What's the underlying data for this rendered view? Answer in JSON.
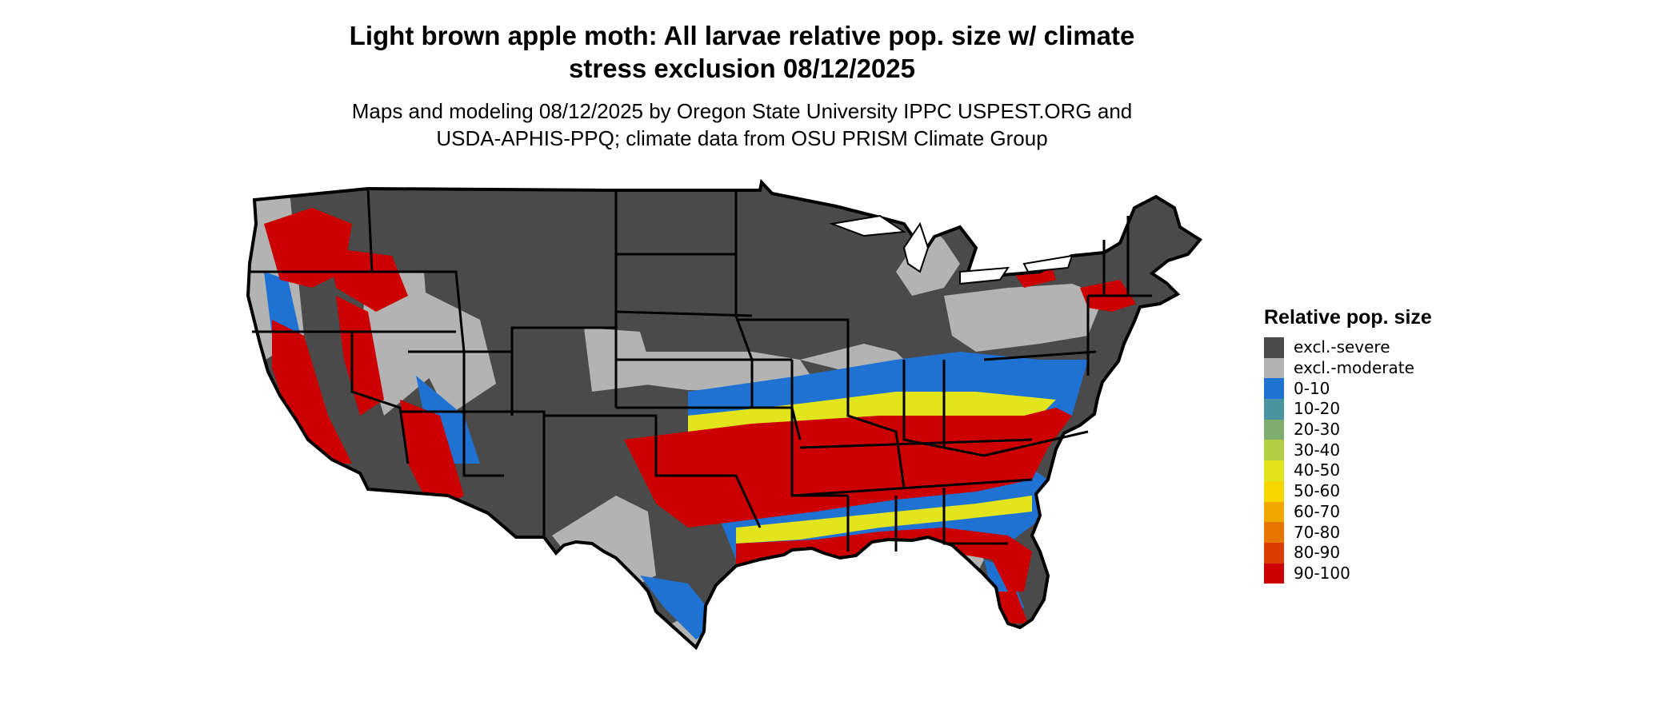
{
  "title_line1": "Light brown apple moth: All larvae relative pop. size w/ climate",
  "title_line2": "stress exclusion 08/12/2025",
  "subtitle_line1": "Maps and modeling 08/12/2025 by Oregon State University IPPC USPEST.ORG and",
  "subtitle_line2": "USDA-APHIS-PPQ; climate data from OSU PRISM Climate Group",
  "legend": {
    "title": "Relative pop. size",
    "items": [
      {
        "label": "excl.-severe",
        "color": "#4a4a4a"
      },
      {
        "label": "excl.-moderate",
        "color": "#b3b3b3"
      },
      {
        "label": "0-10",
        "color": "#1f72d1"
      },
      {
        "label": "10-20",
        "color": "#4a94a0"
      },
      {
        "label": "20-30",
        "color": "#7fad6e"
      },
      {
        "label": "30-40",
        "color": "#b2cf43"
      },
      {
        "label": "40-50",
        "color": "#e2e51e"
      },
      {
        "label": "50-60",
        "color": "#f6d800"
      },
      {
        "label": "60-70",
        "color": "#f0a800"
      },
      {
        "label": "70-80",
        "color": "#e67600"
      },
      {
        "label": "80-90",
        "color": "#dc3c00"
      },
      {
        "label": "90-100",
        "color": "#cc0000"
      }
    ]
  },
  "map": {
    "region": "contiguous-united-states",
    "colors": {
      "severe": "#4a4a4a",
      "moderate": "#b3b3b3",
      "low": "#1f72d1",
      "mid": "#e2e51e",
      "high": "#cc0000",
      "border": "#000000"
    }
  }
}
